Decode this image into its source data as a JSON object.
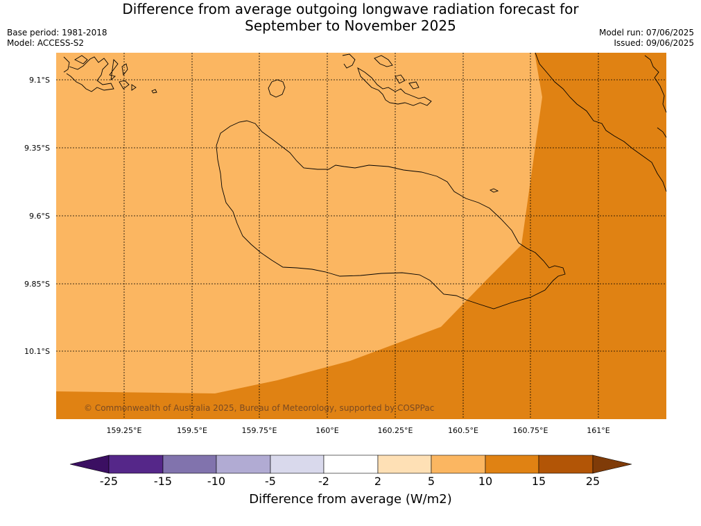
{
  "title_line1": "Difference from average outgoing longwave radiation forecast for",
  "title_line2": "September to November 2025",
  "base_period": "Base period: 1981-2018",
  "model": "Model: ACCESS-S2",
  "model_run": "Model run: 07/06/2025",
  "issued": "Issued: 09/06/2025",
  "copyright": "© Commonwealth of Australia 2025, Bureau of Meteorology, supported by COSPPac",
  "lat_labels": [
    "9.1°S",
    "9.35°S",
    "9.6°S",
    "9.85°S",
    "10.1°S"
  ],
  "lon_labels": [
    "159.25°E",
    "159.5°E",
    "159.75°E",
    "160°E",
    "160.25°E",
    "160.5°E",
    "160.75°E",
    "161°E"
  ],
  "colorbar": {
    "title": "Difference from average (W/m2)",
    "ticks": [
      "-25",
      "-15",
      "-10",
      "-5",
      "-2",
      "2",
      "5",
      "10",
      "15",
      "25"
    ],
    "colors": [
      "#3b0f62",
      "#552789",
      "#8173ad",
      "#b1abd3",
      "#d9d9ec",
      "#ffffff",
      "#fee0b5",
      "#fbb661",
      "#e08213",
      "#b25506",
      "#7f3b08"
    ]
  }
}
